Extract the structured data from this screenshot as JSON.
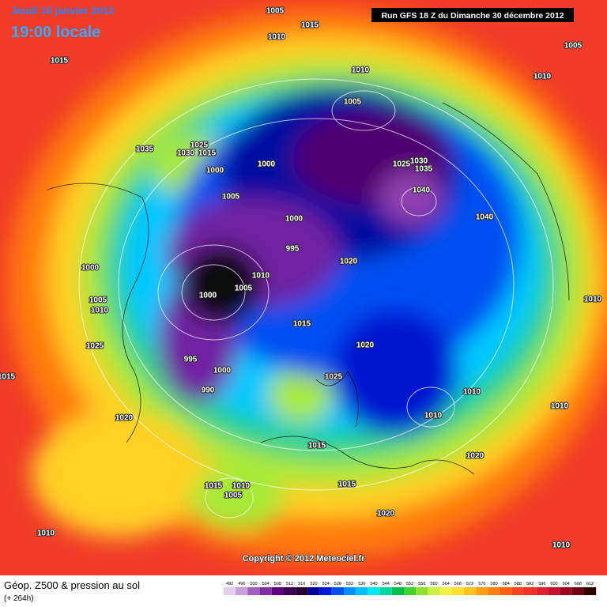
{
  "header": {
    "date": "Jeudi 10 janvier 2013",
    "time": "19:00 locale",
    "run": "Run GFS 18 Z du Dimanche 30 décembre 2012"
  },
  "isobars": [
    "1005",
    "1015",
    "1010",
    "1015",
    "1005",
    "1010",
    "1010",
    "1005",
    "1035",
    "1025",
    "1030",
    "1015",
    "1000",
    "1000",
    "1030",
    "1035",
    "1025",
    "1040",
    "1005",
    "1040",
    "1000",
    "995",
    "1020",
    "1000",
    "1010",
    "1005",
    "1000",
    "1005",
    "1010",
    "1010",
    "1015",
    "1020",
    "1025",
    "995",
    "1000",
    "1025",
    "990",
    "1015",
    "1010",
    "1010",
    "1010",
    "1020",
    "1015",
    "1020",
    "1015",
    "1010",
    "1005",
    "1015",
    "1020",
    "1010",
    "1010"
  ],
  "copyright": "Copyright © 2012 Meteociel.fr",
  "footer": {
    "title": "Géop. Z500 & pression au sol",
    "lead": "(+ 264h)"
  },
  "scale": {
    "values": [
      492,
      496,
      500,
      504,
      508,
      512,
      516,
      520,
      524,
      528,
      532,
      536,
      540,
      544,
      548,
      552,
      556,
      560,
      564,
      568,
      572,
      576,
      580,
      584,
      588,
      592,
      596,
      600,
      604,
      608,
      612
    ],
    "colors": [
      "#e0d0e8",
      "#c8a0d8",
      "#a060c0",
      "#8030a0",
      "#600080",
      "#3c0050",
      "#2a0030",
      "#0000a0",
      "#0018d8",
      "#0050f0",
      "#0090ff",
      "#00c0ff",
      "#00e8f0",
      "#00d8a0",
      "#00c050",
      "#40d030",
      "#90e030",
      "#c8f040",
      "#f0f040",
      "#ffe030",
      "#ffc020",
      "#ffa010",
      "#ff8010",
      "#ff6010",
      "#f84020",
      "#f03028",
      "#e02030",
      "#c81030",
      "#a00020",
      "#700010",
      "#300000"
    ]
  }
}
